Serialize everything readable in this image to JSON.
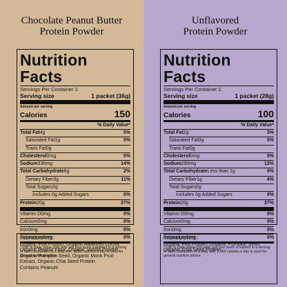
{
  "panels": [
    {
      "title": [
        "Chocolate Peanut Butter",
        "Protein Powder"
      ],
      "background": "#d3b997",
      "label": {
        "heading": "Nutrition Facts",
        "servings": "Servings Per Container 1",
        "serving_size_label": "Serving size",
        "serving_size": "1 packet (36g)",
        "amount_per_serving": "Amount per serving",
        "calories_label": "Calories",
        "calories": "150",
        "dv_header": "% Daily Value*",
        "nutrients": [
          {
            "name": "Total Fat",
            "amount": "4g",
            "dv": "5%",
            "level": 0
          },
          {
            "name": "Saturated Fat",
            "amount": "1g",
            "dv": "5%",
            "level": 1
          },
          {
            "name": "Trans Fat",
            "amount": "0g",
            "level": 1
          },
          {
            "name": "Cholesterol",
            "amount": "0mg",
            "dv": "0%",
            "level": 0
          },
          {
            "name": "Sodium",
            "amount": "330mg",
            "dv": "14%",
            "level": 0
          },
          {
            "name": "Total Carbohydrate",
            "amount": "6g",
            "dv": "2%",
            "level": 0
          },
          {
            "name": "Dietary Fiber",
            "amount": "3g",
            "dv": "11%",
            "level": 1
          },
          {
            "name": "Total Sugars",
            "amount": "2g",
            "level": 1
          },
          {
            "name": "Includes 0g Added Sugars",
            "dv": "0%",
            "level": 2
          },
          {
            "name": "Protein",
            "amount": "20g",
            "dv": "27%",
            "level": 0
          }
        ],
        "vitamins": [
          {
            "name": "Vitamin D",
            "amount": "0mg",
            "dv": "0%"
          },
          {
            "name": "Calcium",
            "amount": "0mg",
            "dv": "0%"
          },
          {
            "name": "Iron",
            "amount": "0mg",
            "dv": "0%"
          },
          {
            "name": "Potassium",
            "amount": "0mg",
            "dv": "0%"
          }
        ],
        "footnote": "* The % Daily Value (DV) tells you how much a nutrient in a serving of food contributes to a daily diet. 2,000 calories a day is used for general nutrition advice."
      },
      "ingredients": {
        "heading": "INGREDIENTS:",
        "lines": [
          "Organic Pea Protein, Organic Alkalized Cocoa, Organic Peanut Flour, Organic Vanilla Powder, Organic Pumpkin Seed, Organic Monk Fruit Extract, Organic Chia Seed Protein",
          "Contains Peanuts"
        ]
      }
    },
    {
      "title": [
        "Unflavored",
        "Protein Powder"
      ],
      "background": "#b8a7cc",
      "label": {
        "heading": "Nutrition Facts",
        "servings": "Servings Per Container 1",
        "serving_size_label": "Serving size",
        "serving_size": "1 packet (28g)",
        "amount_per_serving": "Amount per serving",
        "calories_label": "Calories",
        "calories": "100",
        "dv_header": "% Daily Value*",
        "nutrients": [
          {
            "name": "Total Fat",
            "amount": "2g",
            "dv": "3%",
            "level": 0
          },
          {
            "name": "Saturated Fat",
            "amount": "0g",
            "dv": "0%",
            "level": 1
          },
          {
            "name": "Trans Fat",
            "amount": "0g",
            "level": 1
          },
          {
            "name": "Cholesterol",
            "amount": "0mg",
            "dv": "0%",
            "level": 0
          },
          {
            "name": "Sodium",
            "amount": "290mg",
            "dv": "13%",
            "level": 0
          },
          {
            "name": "Total Carbohydrate",
            "amount": "Less than 1g",
            "dv": "0%",
            "level": 0
          },
          {
            "name": "Dietary Fiber",
            "amount": "1g",
            "dv": "4%",
            "level": 1
          },
          {
            "name": "Total Sugars",
            "amount": "0g",
            "level": 1
          },
          {
            "name": "Includes 0g Added Sugars",
            "dv": "0%",
            "level": 2
          },
          {
            "name": "Protein",
            "amount": "20g",
            "dv": "27%",
            "level": 0
          }
        ],
        "vitamins": [
          {
            "name": "Vitamin D",
            "amount": "0mg",
            "dv": "0%"
          },
          {
            "name": "Calcium",
            "amount": "0mg",
            "dv": "0%"
          },
          {
            "name": "Iron",
            "amount": "0mg",
            "dv": "0%"
          },
          {
            "name": "Potassium",
            "amount": "0mg",
            "dv": "0%"
          }
        ],
        "footnote": "* The % Daily Value (DV) tells you how much a nutrient in a serving of food contributes to a daily diet. 2,000 calories a day is used for general nutrition advice."
      },
      "ingredients": {
        "heading": "INGREDIENTS:",
        "lines": [
          "Organic Pea Protein, Organic Pumpkin Seed, Organic Chia Seed Protein"
        ]
      }
    }
  ]
}
